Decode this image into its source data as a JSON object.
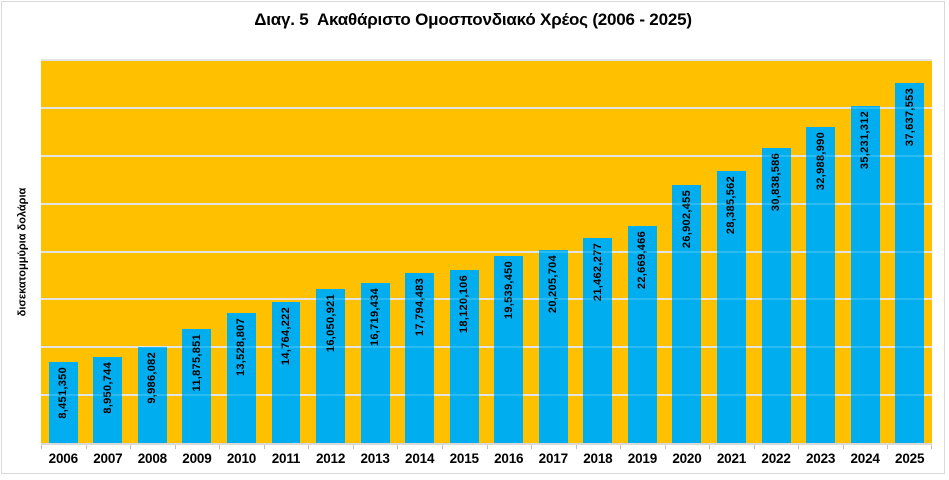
{
  "chart_data": {
    "type": "bar",
    "title": "Διαγ. 5  Ακαθάριστο Ομοσπονδιακό Χρέος (2006 - 2025)",
    "xlabel": "",
    "ylabel": "δισεκατομμύρια δολάρια",
    "categories": [
      "2006",
      "2007",
      "2008",
      "2009",
      "2010",
      "2011",
      "2012",
      "2013",
      "2014",
      "2015",
      "2016",
      "2017",
      "2018",
      "2019",
      "2020",
      "2021",
      "2022",
      "2023",
      "2024",
      "2025"
    ],
    "values": [
      8451350,
      8950744,
      9986082,
      11875851,
      13528807,
      14764222,
      16050921,
      16719434,
      17794483,
      18120106,
      19539450,
      20205704,
      21462277,
      22669466,
      26902455,
      28385562,
      30838586,
      32988990,
      35231312,
      37637553
    ],
    "data_labels": [
      "8,451,350",
      "8,950,744",
      "9,986,082",
      "11,875,851",
      "13,528,807",
      "14,764,222",
      "16,050,921",
      "16,719,434",
      "17,794,483",
      "18,120,106",
      "19,539,450",
      "20,205,704",
      "21,462,277",
      "22,669,466",
      "26,902,455",
      "28,385,562",
      "30,838,586",
      "32,988,990",
      "35,231,312",
      "37,637,553"
    ],
    "ylim": [
      0,
      40000000
    ],
    "gridline_step": 5000000,
    "y_tick_labels_visible": false,
    "grid": "horizontal",
    "legend": "none",
    "data_label_position": "inside-end-vertical",
    "colors": {
      "bar": "#00AEEF",
      "plot_background": "#FFC000",
      "gridline": "#DEDEDE",
      "axis_line": "#D9D9D9",
      "tick": "#BFBFBF",
      "text": "#000000",
      "frame_border": "#D9D9D9"
    }
  }
}
